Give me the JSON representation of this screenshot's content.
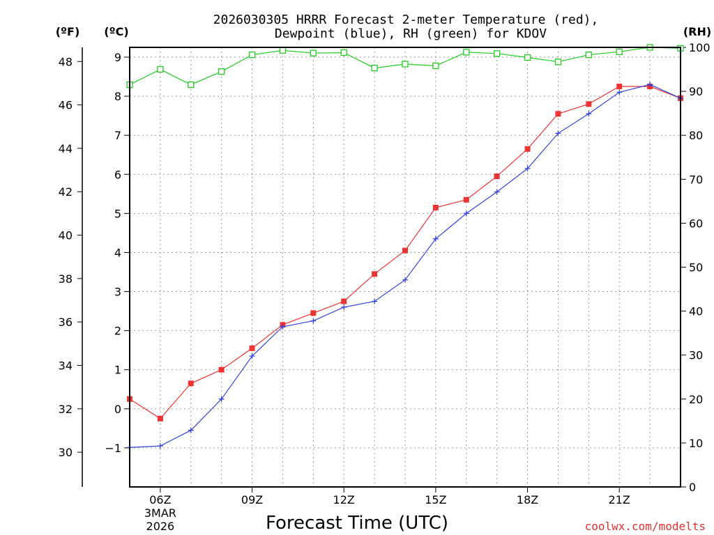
{
  "chart_data": {
    "type": "line",
    "title_line1": "2026030305 HRRR Forecast 2-meter Temperature (red),",
    "title_line2": "Dewpoint (blue), RH (green) for KDOV",
    "xlabel": "Forecast Time (UTC)",
    "unit_f": "(ºF)",
    "unit_c": "(ºC)",
    "unit_rh": "(RH)",
    "credit": "coolwx.com/modelts",
    "x_hours": [
      5,
      6,
      7,
      8,
      9,
      10,
      11,
      12,
      13,
      14,
      15,
      16,
      17,
      18,
      19,
      20,
      21,
      22,
      23
    ],
    "x_ticks": [
      {
        "hour": 6,
        "label": "06Z",
        "sub1": "3MAR",
        "sub2": "2026"
      },
      {
        "hour": 9,
        "label": "09Z"
      },
      {
        "hour": 12,
        "label": "12Z"
      },
      {
        "hour": 15,
        "label": "15Z"
      },
      {
        "hour": 18,
        "label": "18Z"
      },
      {
        "hour": 21,
        "label": "21Z"
      }
    ],
    "xlim": [
      5,
      23
    ],
    "ylim_c": [
      -2,
      9.25
    ],
    "y_ticks_c": [
      "-1",
      "0",
      "1",
      "2",
      "3",
      "4",
      "5",
      "6",
      "7",
      "8",
      "9"
    ],
    "y_ticks_f": [
      "30",
      "32",
      "34",
      "36",
      "38",
      "40",
      "42",
      "44",
      "46",
      "48"
    ],
    "rh_lim": [
      0,
      100
    ],
    "y_ticks_rh": [
      "0",
      "10",
      "20",
      "30",
      "40",
      "50",
      "60",
      "70",
      "80",
      "90",
      "100"
    ],
    "series": [
      {
        "name": "Temperature",
        "color": "#ee3333",
        "marker": "square-filled",
        "values": [
          0.25,
          -0.25,
          0.65,
          1.0,
          1.55,
          2.15,
          2.45,
          2.75,
          3.45,
          4.05,
          5.15,
          5.35,
          5.95,
          6.65,
          7.55,
          7.8,
          8.25,
          8.25,
          7.95
        ]
      },
      {
        "name": "Dewpoint",
        "color": "#3344dd",
        "marker": "plus",
        "values": [
          -0.99,
          -0.95,
          -0.55,
          0.25,
          1.35,
          2.1,
          2.25,
          2.6,
          2.75,
          3.3,
          4.35,
          5.0,
          5.55,
          6.15,
          7.05,
          7.55,
          8.1,
          8.3,
          7.95
        ]
      },
      {
        "name": "RH",
        "color": "#22cc22",
        "marker": "square-open",
        "axis": "rh",
        "values": [
          91.5,
          95.0,
          91.5,
          94.5,
          98.3,
          99.3,
          98.7,
          98.8,
          95.3,
          96.2,
          95.8,
          98.9,
          98.6,
          97.7,
          96.7,
          98.3,
          99.0,
          100.0,
          99.8
        ]
      }
    ]
  }
}
